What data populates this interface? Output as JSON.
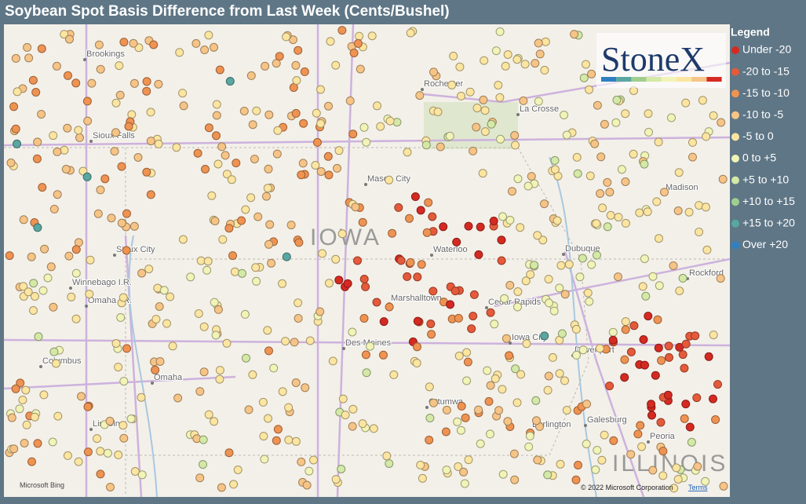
{
  "title": "Soybean Spot Basis Difference from Last Week (Cents/Bushel)",
  "legend": {
    "title": "Legend",
    "items": [
      {
        "label": "Under -20",
        "color": "#d42a22"
      },
      {
        "label": "-20 to -15",
        "color": "#e45a3a"
      },
      {
        "label": "-15 to -10",
        "color": "#ef9352"
      },
      {
        "label": "-10 to -5",
        "color": "#f6c486"
      },
      {
        "label": "-5 to 0",
        "color": "#fbe5a0"
      },
      {
        "label": "0 to +5",
        "color": "#f1f4b6"
      },
      {
        "label": "+5 to +10",
        "color": "#d3e9a5"
      },
      {
        "label": "+10 to +15",
        "color": "#9fce8e"
      },
      {
        "label": "+15 to +20",
        "color": "#5aa7a2"
      },
      {
        "label": "Over +20",
        "color": "#2f7fc1"
      }
    ]
  },
  "logo": "StoneX",
  "map": {
    "states": [
      "IOWA",
      "ILLINOIS"
    ],
    "cities": [
      "Brookings",
      "Rochester",
      "La Crosse",
      "Sioux Falls",
      "Mason City",
      "Madison",
      "Sioux City",
      "Waterloo",
      "Dubuque",
      "Rockford",
      "Winnebago I.R.",
      "Omaha I.R.",
      "Marshalltown",
      "Cedar Rapids",
      "Iowa City",
      "Davenport",
      "Columbus",
      "Omaha",
      "Des Moines",
      "Ottumwa",
      "Lincoln",
      "Burlington",
      "Galesburg",
      "Peoria"
    ],
    "attribution": "© 2022 Microsoft Corporation",
    "terms": "Terms",
    "provider": "Microsoft Bing"
  }
}
